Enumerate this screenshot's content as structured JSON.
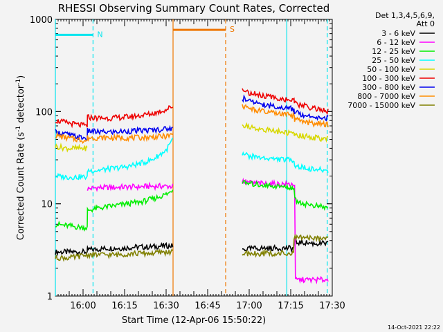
{
  "chart_data": {
    "type": "line",
    "title": "RHESSI Observing Summary Count Rates, Corrected",
    "xlabel": "Start Time (12-Apr-06 15:50:22)",
    "ylabel_parts": [
      "Corrected Count Rate (s",
      "-1",
      " detector",
      "-1",
      ")"
    ],
    "yscale": "log",
    "ylim": [
      1,
      1000
    ],
    "xlim_min": [
      0,
      100
    ],
    "xtick_minutes": [
      10,
      25,
      40,
      55,
      70,
      85,
      100
    ],
    "xtick_labels": [
      "16:00",
      "16:15",
      "16:30",
      "16:45",
      "17:00",
      "17:15",
      "17:30"
    ],
    "ytick_values": [
      1,
      10,
      100,
      1000
    ],
    "ytick_labels": [
      "1",
      "10",
      "100",
      "1000"
    ],
    "detectors_label": "Det 1,3,4,5,6,9,",
    "attenuator_label": "Att 0",
    "timestamp": "14-Oct-2021 22:22",
    "flags": [
      {
        "label": "N",
        "start": 0,
        "end": 13.6,
        "y": 680,
        "color": "#00e5ee"
      },
      {
        "label": "S",
        "start": 42.5,
        "end": 61.5,
        "y": 770,
        "color": "#ee7600"
      }
    ],
    "night_lines": {
      "solid": [
        0,
        83.6
      ],
      "dashed": [
        13.6,
        98.2
      ],
      "color": "#00e5ee"
    },
    "saa_lines": {
      "solid": [
        42.5
      ],
      "dashed": [
        61.5
      ],
      "color": "#ee7600"
    },
    "series": [
      {
        "name": "3 - 6 keV",
        "color": "#000000",
        "segments": [
          {
            "x": [
              0,
              5,
              10,
              11.5,
              11.6,
              14,
              19,
              24,
              29,
              34,
              39,
              42.4
            ],
            "y": [
              3,
              3,
              3,
              3,
              3.2,
              3.2,
              3.3,
              3.3,
              3.4,
              3.4,
              3.5,
              3.5
            ]
          },
          {
            "x": [
              67.5,
              72.5,
              77.5,
              82.5,
              85,
              86,
              86.2,
              90,
              94,
              98.5
            ],
            "y": [
              3.2,
              3.3,
              3.3,
              3.3,
              3.3,
              3.3,
              3.8,
              3.8,
              3.7,
              3.7
            ]
          }
        ]
      },
      {
        "name": "6 - 12 keV",
        "color": "#ff00ff",
        "segments": [
          {
            "x": [
              11.6,
              15,
              20,
              25,
              30,
              35,
              40,
              42.4
            ],
            "y": [
              14.5,
              15,
              15,
              15.2,
              15.3,
              15.5,
              15.5,
              15.5
            ]
          },
          {
            "x": [
              67.5,
              70,
              75,
              80,
              85,
              86.4,
              86.7,
              90,
              94,
              98.5
            ],
            "y": [
              17.5,
              17,
              16.5,
              16.4,
              16.3,
              16.3,
              1.5,
              1.5,
              1.5,
              1.5
            ]
          }
        ]
      },
      {
        "name": "12 - 25 keV",
        "color": "#00ee00",
        "segments": [
          {
            "x": [
              0,
              4,
              8,
              11.5,
              11.6,
              16,
              21,
              26,
              31,
              36,
              41,
              42.4
            ],
            "y": [
              6,
              5.8,
              5.6,
              5.5,
              8.5,
              9,
              9.5,
              10,
              10.5,
              11.5,
              13,
              14.5
            ]
          },
          {
            "x": [
              67.5,
              70,
              75,
              80,
              85,
              86.2,
              86.5,
              90,
              94,
              98.5
            ],
            "y": [
              17,
              16.5,
              16,
              15.5,
              15,
              15,
              11,
              10,
              9.5,
              9
            ]
          }
        ]
      },
      {
        "name": "25 - 50 keV",
        "color": "#00ffff",
        "segments": [
          {
            "x": [
              0,
              4,
              8,
              11.5,
              11.6,
              15,
              20,
              25,
              30,
              35,
              40,
              42.4
            ],
            "y": [
              20,
              19.5,
              19.5,
              19.5,
              23,
              23,
              24,
              25,
              27,
              30,
              38,
              50
            ]
          },
          {
            "x": [
              67.5,
              70,
              75,
              80,
              85,
              86.2,
              86.4,
              90,
              94,
              98.5
            ],
            "y": [
              35,
              33,
              31.5,
              30.5,
              30,
              30,
              26,
              24.5,
              23.5,
              23
            ]
          }
        ]
      },
      {
        "name": "50 - 100 keV",
        "color": "#d8d800",
        "segments": [
          {
            "x": [
              0,
              4,
              8,
              11.5
            ],
            "y": [
              42,
              40,
              40,
              40
            ]
          },
          {
            "x": [
              67.5,
              70,
              75,
              80,
              85,
              86.2,
              86.4,
              90,
              94,
              98.5
            ],
            "y": [
              72,
              68,
              64,
              61,
              58,
              57,
              56,
              54,
              52,
              50
            ]
          }
        ]
      },
      {
        "name": "100 - 300 keV",
        "color": "#ee0000",
        "segments": [
          {
            "x": [
              0,
              4,
              8,
              11.5,
              11.6,
              15,
              20,
              25,
              30,
              35,
              40,
              42.4
            ],
            "y": [
              80,
              76,
              72,
              70,
              87,
              85,
              85,
              87,
              90,
              95,
              105,
              115
            ]
          },
          {
            "x": [
              67.5,
              70,
              75,
              80,
              85,
              86.2,
              86.4,
              90,
              94,
              98.5
            ],
            "y": [
              170,
              160,
              148,
              140,
              133,
              130,
              122,
              115,
              108,
              100
            ]
          }
        ]
      },
      {
        "name": "300 - 800 keV",
        "color": "#0000ee",
        "segments": [
          {
            "x": [
              0,
              4,
              8,
              11.5,
              11.6,
              15,
              20,
              25,
              30,
              35,
              40,
              42.4
            ],
            "y": [
              60,
              57,
              53,
              51,
              62,
              60,
              60,
              61,
              62,
              63,
              65,
              66
            ]
          },
          {
            "x": [
              67.5,
              70,
              75,
              80,
              85,
              86.2,
              86.4,
              90,
              94,
              98.5
            ],
            "y": [
              140,
              130,
              120,
              112,
              108,
              106,
              98,
              92,
              88,
              85
            ]
          }
        ]
      },
      {
        "name": "800 - 7000 keV",
        "color": "#ff8c00",
        "segments": [
          {
            "x": [
              0,
              4,
              8,
              11.5,
              11.6,
              15,
              20,
              25,
              30,
              35,
              40,
              42.4
            ],
            "y": [
              55,
              52,
              50,
              48,
              52,
              52,
              52,
              52,
              52,
              53,
              54,
              56
            ]
          },
          {
            "x": [
              67.5,
              70,
              75,
              80,
              85,
              86.2,
              86.4,
              90,
              94,
              98.5
            ],
            "y": [
              115,
              108,
              100,
              95,
              91,
              89,
              82,
              77,
              74,
              72
            ]
          }
        ]
      },
      {
        "name": "7000 - 15000 keV",
        "color": "#808000",
        "segments": [
          {
            "x": [
              0,
              6,
              11.6,
              16,
              22,
              28,
              34,
              40,
              42.4
            ],
            "y": [
              2.6,
              2.6,
              2.8,
              2.8,
              2.8,
              2.9,
              2.9,
              3.0,
              3.0
            ]
          },
          {
            "x": [
              67.5,
              75,
              82,
              86,
              86.2,
              90,
              94,
              98.5
            ],
            "y": [
              2.9,
              2.9,
              2.9,
              2.9,
              4.2,
              4.3,
              4.3,
              4.3
            ]
          }
        ]
      }
    ]
  }
}
